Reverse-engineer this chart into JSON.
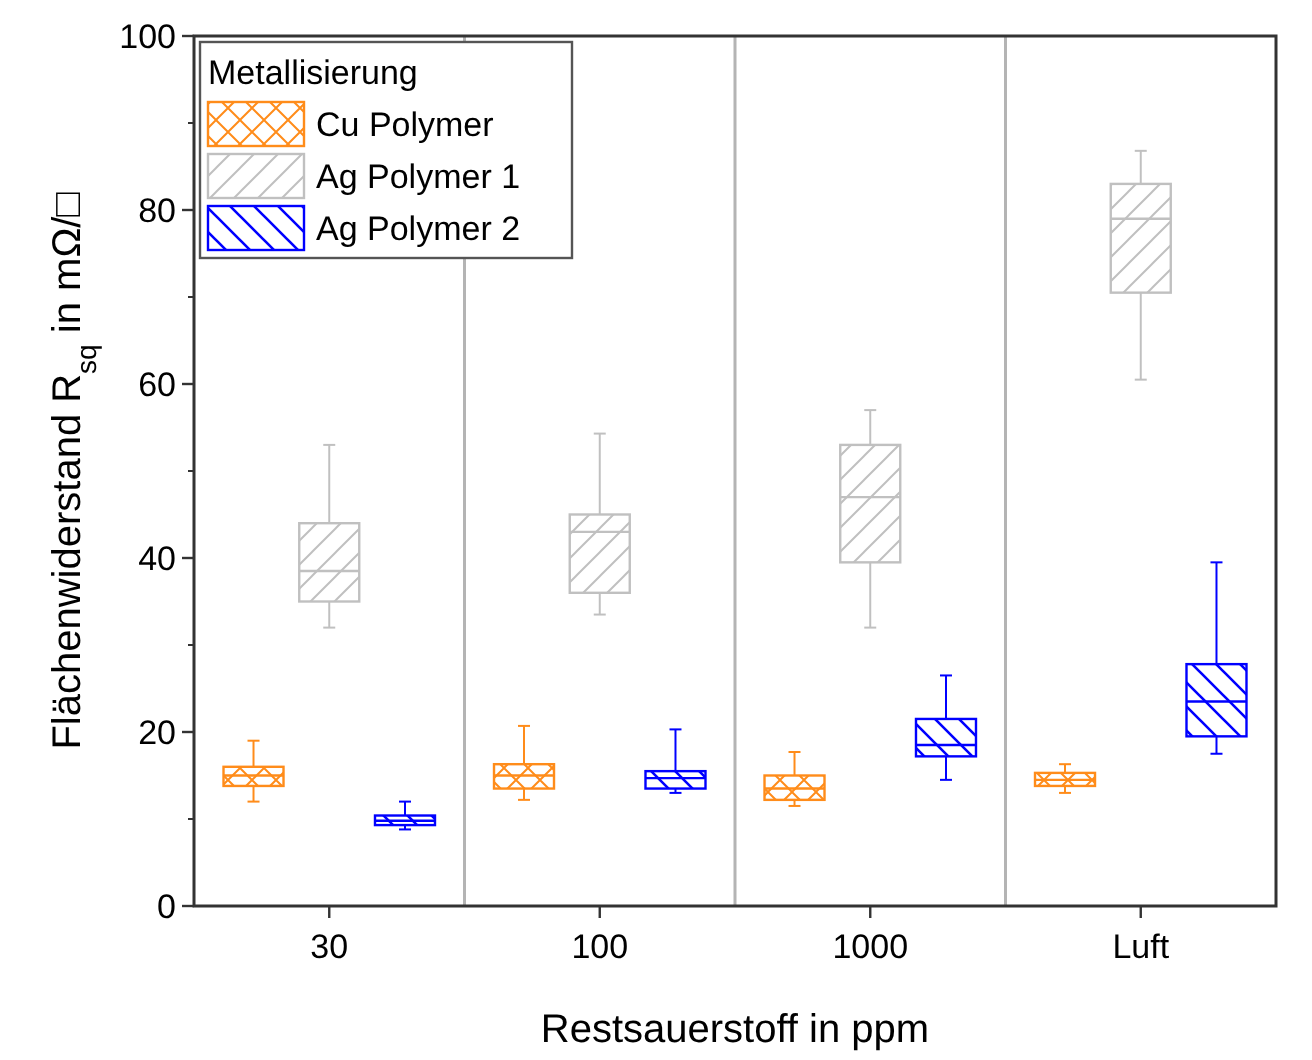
{
  "chart_data": {
    "type": "box",
    "xlabel": "Restsauerstoff in ppm",
    "ylabel": "Flächenwiderstand R$_{sq}$ in mΩ/□",
    "legend_title": "Metallisierung",
    "legend": "top left",
    "categories": [
      "30",
      "100",
      "1000",
      "Luft"
    ],
    "ylim": [
      0,
      100
    ],
    "yticks": [
      0,
      20,
      40,
      60,
      80,
      100
    ],
    "grid": false,
    "series": [
      {
        "name": "Cu Polymer",
        "color": "#ff8c1a",
        "boxes": [
          {
            "low": 12,
            "q1": 13.8,
            "median": 15,
            "q3": 16,
            "high": 19
          },
          {
            "low": 12.2,
            "q1": 13.5,
            "median": 15,
            "q3": 16.3,
            "high": 20.7
          },
          {
            "low": 11.5,
            "q1": 12.2,
            "median": 13.5,
            "q3": 15,
            "high": 17.7
          },
          {
            "low": 13,
            "q1": 13.8,
            "median": 14.5,
            "q3": 15.3,
            "high": 16.3
          }
        ]
      },
      {
        "name": "Ag Polymer 1",
        "color": "#c0c0c0",
        "boxes": [
          {
            "low": 32,
            "q1": 35,
            "median": 38.5,
            "q3": 44,
            "high": 53
          },
          {
            "low": 33.5,
            "q1": 36,
            "median": 43,
            "q3": 45,
            "high": 54.3
          },
          {
            "low": 32,
            "q1": 39.5,
            "median": 47,
            "q3": 53,
            "high": 57
          },
          {
            "low": 60.5,
            "q1": 70.5,
            "median": 79,
            "q3": 83,
            "high": 86.8
          }
        ]
      },
      {
        "name": "Ag Polymer 2",
        "color": "#0000ff",
        "boxes": [
          {
            "low": 8.8,
            "q1": 9.3,
            "median": 9.8,
            "q3": 10.4,
            "high": 12
          },
          {
            "low": 13,
            "q1": 13.5,
            "median": 14.7,
            "q3": 15.5,
            "high": 20.3
          },
          {
            "low": 14.5,
            "q1": 17.2,
            "median": 18.5,
            "q3": 21.5,
            "high": 26.5
          },
          {
            "low": 17.5,
            "q1": 19.5,
            "median": 23.5,
            "q3": 27.8,
            "high": 39.5
          }
        ]
      }
    ]
  }
}
